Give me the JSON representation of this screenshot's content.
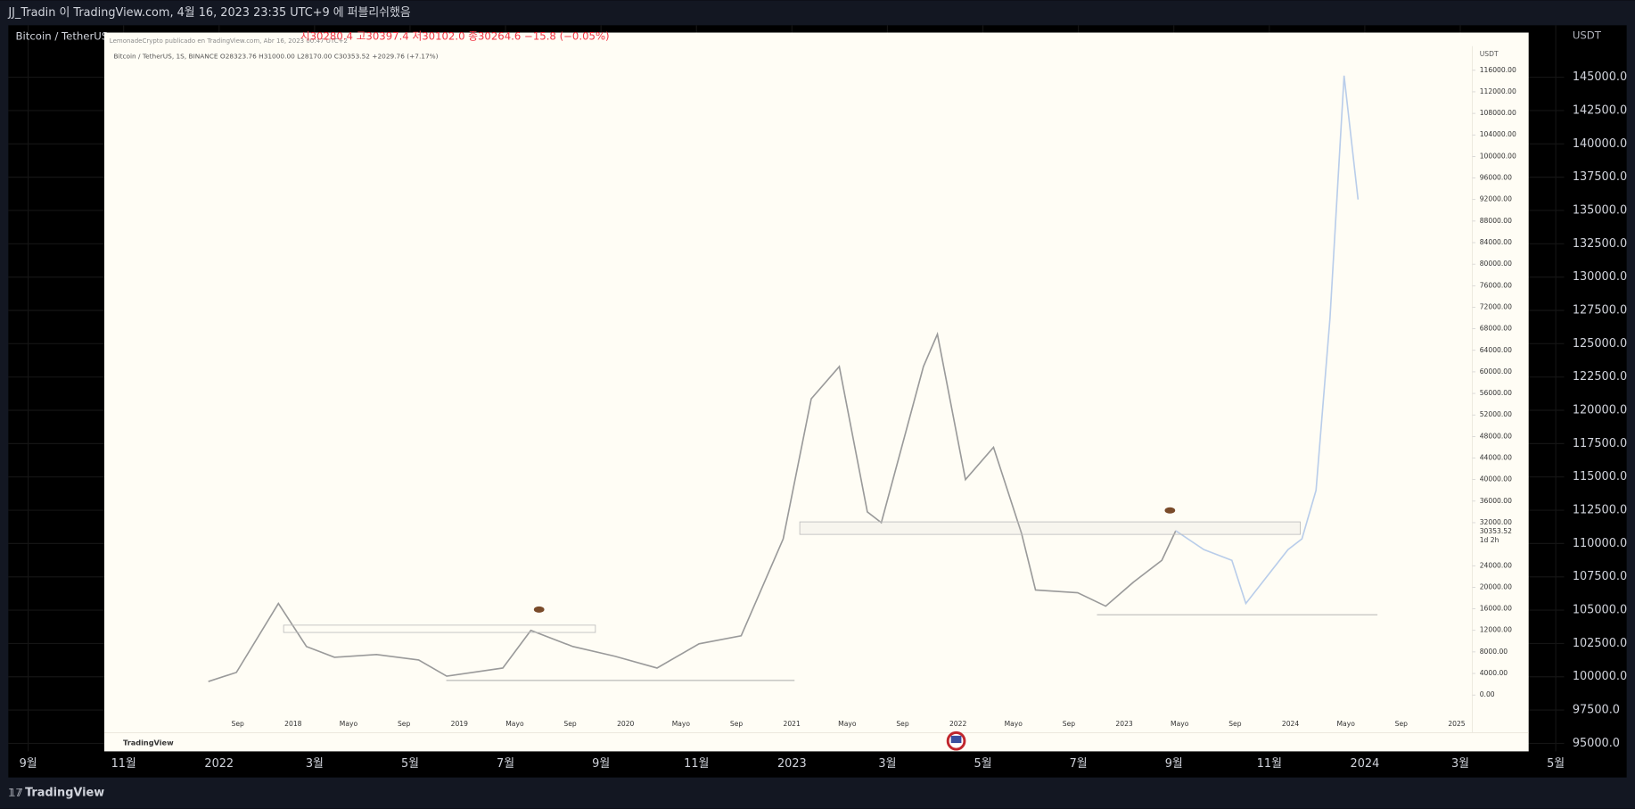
{
  "header": {
    "title": "JJ_Tradin 이 TradingView.com, 4월 16, 2023 23:35 UTC+9 에 퍼블리쉬했음"
  },
  "legend": {
    "symbol": "Bitcoin / TetherUS",
    "ohlc": "시30280.4  고30397.4  저30102.0  종30264.6  −15.8 (−0.05%)"
  },
  "price_axis": {
    "unit": "USDT",
    "ylim": [
      94400,
      148900
    ],
    "ticks": [
      {
        "value": 145000,
        "label": "145000.0"
      },
      {
        "value": 142500,
        "label": "142500.0"
      },
      {
        "value": 140000,
        "label": "140000.0"
      },
      {
        "value": 137500,
        "label": "137500.0"
      },
      {
        "value": 135000,
        "label": "135000.0"
      },
      {
        "value": 132500,
        "label": "132500.0"
      },
      {
        "value": 130000,
        "label": "130000.0"
      },
      {
        "value": 127500,
        "label": "127500.0"
      },
      {
        "value": 125000,
        "label": "125000.0"
      },
      {
        "value": 122500,
        "label": "122500.0"
      },
      {
        "value": 120000,
        "label": "120000.0"
      },
      {
        "value": 117500,
        "label": "117500.0"
      },
      {
        "value": 115000,
        "label": "115000.0"
      },
      {
        "value": 112500,
        "label": "112500.0"
      },
      {
        "value": 110000,
        "label": "110000.0"
      },
      {
        "value": 107500,
        "label": "107500.0"
      },
      {
        "value": 105000,
        "label": "105000.0"
      },
      {
        "value": 102500,
        "label": "102500.0"
      },
      {
        "value": 100000,
        "label": "100000.0"
      },
      {
        "value": 97500,
        "label": "97500.0"
      },
      {
        "value": 95000,
        "label": "95000.0"
      }
    ]
  },
  "time_axis": {
    "labels": [
      "9월",
      "11월",
      "2022",
      "3월",
      "5월",
      "7월",
      "9월",
      "11월",
      "2023",
      "3월",
      "5월",
      "7월",
      "9월",
      "11월",
      "2024",
      "3월",
      "5월"
    ]
  },
  "footer": {
    "brand": "TradingView"
  },
  "chart_data": {
    "type": "line",
    "title": "Bitcoin / TetherUS, 1S, BINANCE  O28323.76  H31000.00  L28170.00  C30353.52  +2029.76 (+7.17%)",
    "watermark": "LemonadeCrypto publicado en TradingView.com, Abr 16, 2023 00:47 UTC+2",
    "unit": "USDT",
    "brand": "TradingView",
    "last_price": 30353.52,
    "countdown": "1d 2h",
    "xlim": [
      "2016-11",
      "2025-01"
    ],
    "ylim": [
      -4000,
      120000
    ],
    "yticks": [
      {
        "value": 116000,
        "label": "116000.00"
      },
      {
        "value": 112000,
        "label": "112000.00"
      },
      {
        "value": 108000,
        "label": "108000.00"
      },
      {
        "value": 104000,
        "label": "104000.00"
      },
      {
        "value": 100000,
        "label": "100000.00"
      },
      {
        "value": 96000,
        "label": "96000.00"
      },
      {
        "value": 92000,
        "label": "92000.00"
      },
      {
        "value": 88000,
        "label": "88000.00"
      },
      {
        "value": 84000,
        "label": "84000.00"
      },
      {
        "value": 80000,
        "label": "80000.00"
      },
      {
        "value": 76000,
        "label": "76000.00"
      },
      {
        "value": 72000,
        "label": "72000.00"
      },
      {
        "value": 68000,
        "label": "68000.00"
      },
      {
        "value": 64000,
        "label": "64000.00"
      },
      {
        "value": 60000,
        "label": "60000.00"
      },
      {
        "value": 56000,
        "label": "56000.00"
      },
      {
        "value": 52000,
        "label": "52000.00"
      },
      {
        "value": 48000,
        "label": "48000.00"
      },
      {
        "value": 44000,
        "label": "44000.00"
      },
      {
        "value": 40000,
        "label": "40000.00"
      },
      {
        "value": 36000,
        "label": "36000.00"
      },
      {
        "value": 32000,
        "label": "32000.00"
      },
      {
        "value": 24000,
        "label": "24000.00"
      },
      {
        "value": 20000,
        "label": "20000.00"
      },
      {
        "value": 16000,
        "label": "16000.00"
      },
      {
        "value": 12000,
        "label": "12000.00"
      },
      {
        "value": 8000,
        "label": "8000.00"
      },
      {
        "value": 4000,
        "label": "4000.00"
      },
      {
        "value": 0,
        "label": "0.00"
      }
    ],
    "categories": [
      "Sep",
      "2018",
      "Mayo",
      "Sep",
      "2019",
      "Mayo",
      "Sep",
      "2020",
      "Mayo",
      "Sep",
      "2021",
      "Mayo",
      "Sep",
      "2022",
      "Mayo",
      "Sep",
      "2023",
      "Mayo",
      "Sep",
      "2024",
      "Mayo",
      "Sep",
      "2025"
    ],
    "series": [
      {
        "color": "#9a9a9a",
        "x": [
          "2017-07",
          "2017-09",
          "2017-12",
          "2018-02",
          "2018-04",
          "2018-07",
          "2018-10",
          "2018-12",
          "2019-04",
          "2019-06",
          "2019-09",
          "2019-12",
          "2020-03",
          "2020-06",
          "2020-09",
          "2020-12",
          "2021-02",
          "2021-04",
          "2021-06",
          "2021-07",
          "2021-10",
          "2021-11",
          "2022-01",
          "2022-03",
          "2022-05",
          "2022-06",
          "2022-09",
          "2022-11",
          "2023-01",
          "2023-03",
          "2023-04"
        ],
        "values": [
          2500,
          4200,
          17000,
          9000,
          7000,
          7500,
          6500,
          3500,
          5000,
          12000,
          9000,
          7200,
          5000,
          9500,
          11000,
          29000,
          55000,
          61000,
          34000,
          32000,
          61000,
          67000,
          40000,
          46000,
          30000,
          19500,
          19000,
          16500,
          21000,
          25000,
          30500
        ]
      },
      {
        "color": "#b9cdea",
        "x": [
          "2023-04",
          "2023-06",
          "2023-08",
          "2023-09",
          "2023-12",
          "2024-01",
          "2024-02",
          "2024-03",
          "2024-04",
          "2024-05"
        ],
        "values": [
          30500,
          27000,
          25000,
          17000,
          27000,
          29000,
          38000,
          70000,
          115000,
          92000
        ]
      }
    ]
  }
}
